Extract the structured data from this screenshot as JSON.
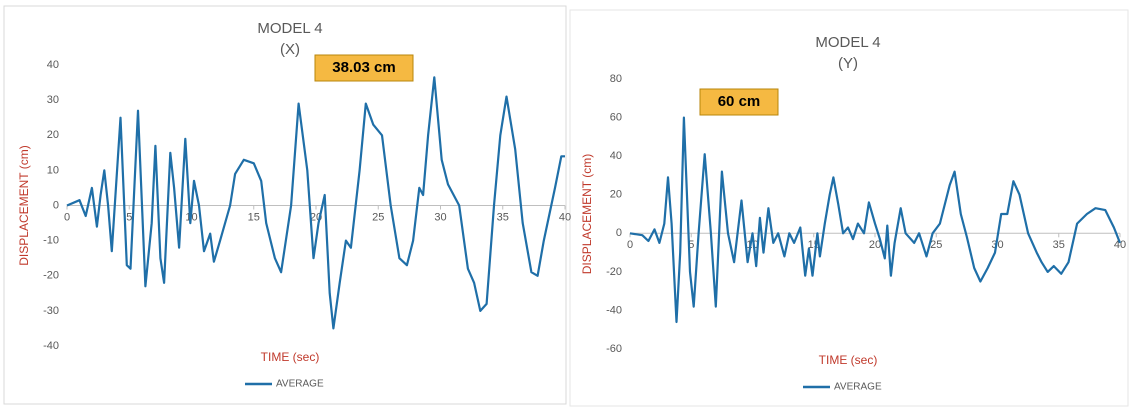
{
  "chart_data": [
    {
      "type": "line",
      "title": "MODEL 4",
      "subtitle": "(X)",
      "x_label": "TIME (sec)",
      "y_label": "DISPLACEMENT (cm)",
      "annotation": "38.03 cm",
      "xlim": [
        0,
        40
      ],
      "xticks": [
        0,
        5,
        10,
        15,
        20,
        25,
        30,
        35,
        40
      ],
      "ylim": [
        -40,
        40
      ],
      "yticks": [
        40,
        30,
        20,
        10,
        0,
        -10,
        -20,
        -30,
        -40
      ],
      "legend": "bottom",
      "grid": false,
      "x": [
        0,
        1,
        1.5,
        2,
        2.4,
        2.7,
        3,
        3.3,
        3.6,
        4.3,
        4.8,
        5.1,
        5.7,
        6.3,
        6.8,
        7.1,
        7.5,
        7.8,
        8.3,
        8.6,
        9,
        9.5,
        9.9,
        10.2,
        10.6,
        11,
        11.5,
        11.8,
        12.3,
        13.1,
        13.5,
        14.2,
        15,
        15.6,
        16,
        16.7,
        17.2,
        18,
        18.6,
        19.3,
        19.8,
        20.2,
        20.7,
        21.1,
        21.4,
        21.9,
        22.4,
        22.8,
        23.5,
        24,
        24.6,
        25.3,
        26,
        26.7,
        27.3,
        27.8,
        28.3,
        28.6,
        29,
        29.5,
        30.1,
        30.6,
        31.5,
        32.2,
        32.7,
        33.2,
        33.7,
        34.3,
        34.8,
        35.3,
        36,
        36.6,
        37.3,
        37.8,
        38.3,
        39.2,
        39.7,
        40
      ],
      "series": [
        {
          "name": "AVERAGE",
          "color": "#1f6fa8",
          "values": [
            0,
            1.5,
            -3,
            5,
            -6,
            3,
            10,
            0,
            -13,
            25,
            -17,
            -18,
            27,
            -23,
            -5,
            17,
            -15,
            -22,
            15,
            5,
            -12,
            19,
            -5,
            7,
            0,
            -13,
            -8,
            -16,
            -10,
            0,
            9,
            13,
            12,
            7,
            -5,
            -15,
            -19,
            0,
            29,
            10,
            -15,
            -5,
            3,
            -25,
            -35,
            -22,
            -10,
            -12,
            10,
            29,
            23,
            20,
            0,
            -15,
            -17,
            -10,
            5,
            3,
            20,
            36.5,
            13,
            6,
            0,
            -18,
            -22,
            -30,
            -28,
            0,
            20,
            31,
            16,
            -5,
            -19,
            -20,
            -10,
            5,
            14,
            14
          ]
        }
      ]
    },
    {
      "type": "line",
      "title": "MODEL 4",
      "subtitle": "(Y)",
      "x_label": "TIME (sec)",
      "y_label": "DISPLACEMENT (cm)",
      "annotation": "60 cm",
      "xlim": [
        0,
        40
      ],
      "xticks": [
        0,
        5,
        10,
        15,
        20,
        25,
        30,
        35,
        40
      ],
      "ylim": [
        -60,
        80
      ],
      "yticks": [
        80,
        60,
        40,
        20,
        0,
        -20,
        -40,
        -60
      ],
      "legend": "bottom",
      "grid": false,
      "x": [
        0,
        1,
        1.5,
        2,
        2.4,
        2.8,
        3.1,
        3.4,
        3.8,
        4.1,
        4.4,
        4.9,
        5.2,
        5.6,
        6.1,
        6.6,
        7,
        7.5,
        8,
        8.5,
        9.1,
        9.6,
        10,
        10.3,
        10.6,
        10.9,
        11.3,
        11.7,
        12.1,
        12.6,
        13,
        13.4,
        13.9,
        14.3,
        14.6,
        14.9,
        15.3,
        15.5,
        15.9,
        16.3,
        16.6,
        17,
        17.4,
        17.8,
        18.2,
        18.6,
        19.1,
        19.5,
        20,
        20.4,
        20.8,
        21,
        21.3,
        21.6,
        22.1,
        22.5,
        23.2,
        23.6,
        24.2,
        24.7,
        25.3,
        26.1,
        26.5,
        27,
        27.5,
        28.1,
        28.6,
        29.2,
        29.8,
        30.3,
        30.8,
        31.3,
        31.8,
        32.5,
        33.2,
        33.6,
        34.1,
        34.6,
        35.2,
        35.8,
        36.5,
        37.3,
        38,
        38.8,
        39.5,
        40
      ],
      "series": [
        {
          "name": "AVERAGE",
          "color": "#1f6fa8",
          "values": [
            0,
            -1,
            -4,
            2,
            -5,
            5,
            29,
            5,
            -46,
            -10,
            60,
            -20,
            -38,
            0,
            41,
            0,
            -38,
            32,
            0,
            -15,
            17,
            -15,
            0,
            -17,
            8,
            -10,
            13,
            -5,
            0,
            -12,
            0,
            -5,
            3,
            -22,
            -8,
            -22,
            0,
            -12,
            5,
            20,
            29,
            15,
            0,
            3,
            -3,
            5,
            0,
            16,
            5,
            -3,
            -13,
            4,
            -22,
            -5,
            13,
            0,
            -5,
            0,
            -12,
            0,
            5,
            25,
            32,
            10,
            -2,
            -18,
            -25,
            -18,
            -10,
            10,
            10,
            27,
            20,
            0,
            -10,
            -15,
            -20,
            -17,
            -21,
            -15,
            5,
            10,
            13,
            12,
            3,
            -5
          ]
        }
      ]
    }
  ]
}
